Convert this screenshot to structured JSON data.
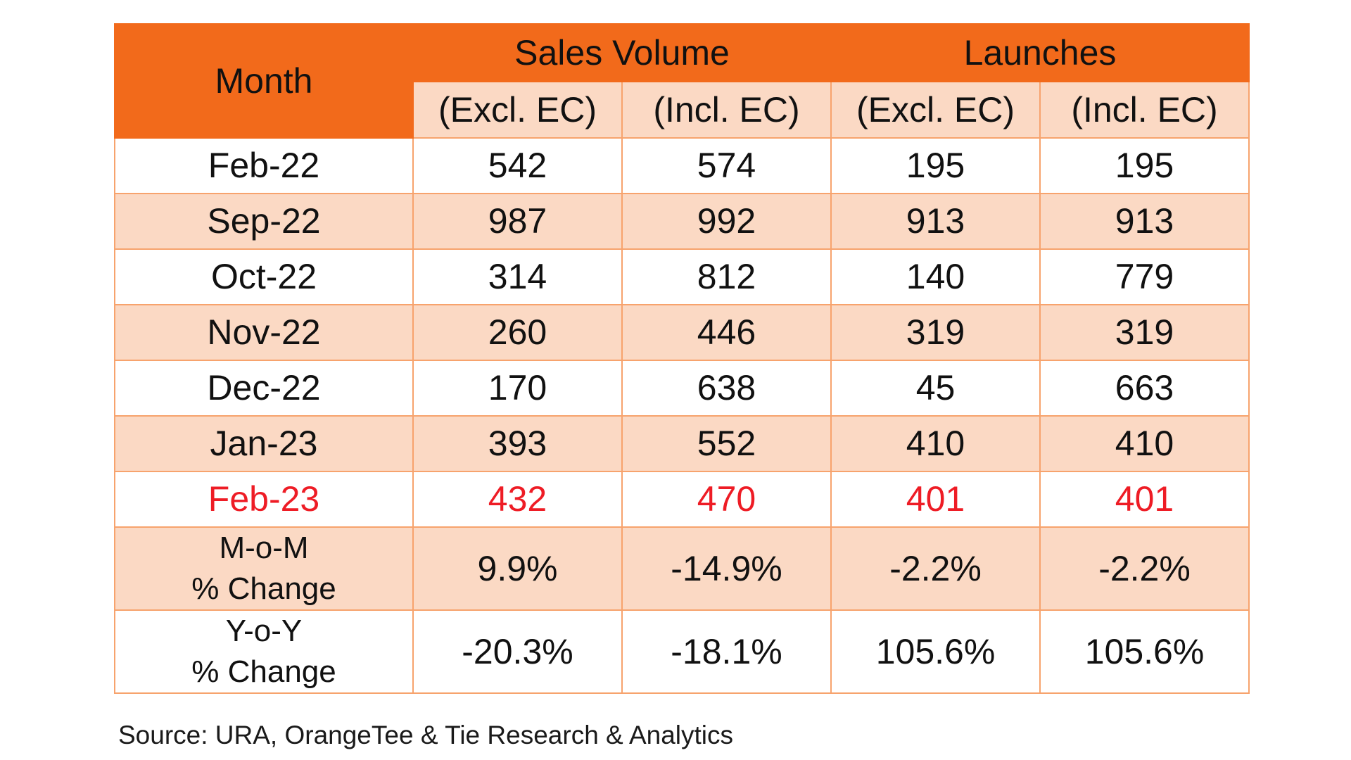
{
  "table": {
    "month_header": "Month",
    "group_headers": [
      "Sales Volume",
      "Launches"
    ],
    "sub_headers": [
      "(Excl. EC)",
      "(Incl. EC)",
      "(Excl. EC)",
      "(Incl. EC)"
    ],
    "rows": [
      {
        "month": "Feb-22",
        "values": [
          "542",
          "574",
          "195",
          "195"
        ]
      },
      {
        "month": "Sep-22",
        "values": [
          "987",
          "992",
          "913",
          "913"
        ]
      },
      {
        "month": "Oct-22",
        "values": [
          "314",
          "812",
          "140",
          "779"
        ]
      },
      {
        "month": "Nov-22",
        "values": [
          "260",
          "446",
          "319",
          "319"
        ]
      },
      {
        "month": "Dec-22",
        "values": [
          "170",
          "638",
          "45",
          "663"
        ]
      },
      {
        "month": "Jan-23",
        "values": [
          "393",
          "552",
          "410",
          "410"
        ]
      },
      {
        "month": "Feb-23",
        "values": [
          "432",
          "470",
          "401",
          "401"
        ]
      }
    ],
    "pct_rows": [
      {
        "label_line1": "M-o-M",
        "label_line2": "% Change",
        "values": [
          "9.9%",
          "-14.9%",
          "-2.2%",
          "-2.2%"
        ]
      },
      {
        "label_line1": "Y-o-Y",
        "label_line2": "% Change",
        "values": [
          "-20.3%",
          "-18.1%",
          "105.6%",
          "105.6%"
        ]
      }
    ]
  },
  "source": "Source: URA, OrangeTee & Tie Research & Analytics",
  "colors": {
    "header_orange": "#f26a1b",
    "tint_row": "#fbd9c4",
    "border": "#f7a36d",
    "highlight_red": "#ee1c25"
  }
}
